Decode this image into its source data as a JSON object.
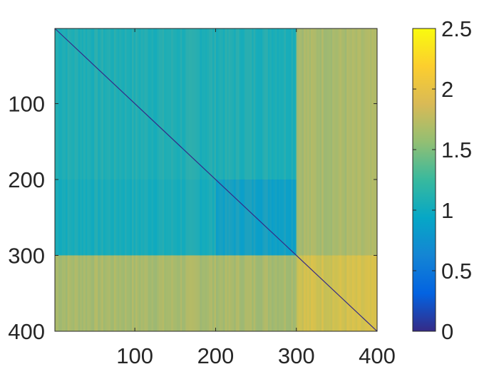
{
  "chart_data": {
    "type": "heatmap",
    "title": "",
    "xlabel": "",
    "ylabel": "",
    "xlim": [
      1,
      400
    ],
    "ylim": [
      1,
      400
    ],
    "y_direction": "reverse",
    "x_ticks": [
      100,
      200,
      300,
      400
    ],
    "x_tick_labels": [
      "100",
      "200",
      "300",
      "400"
    ],
    "y_ticks": [
      100,
      200,
      300,
      400
    ],
    "y_tick_labels": [
      "100",
      "200",
      "300",
      "400"
    ],
    "colormap": "parula",
    "color_range": [
      0,
      2.5
    ],
    "colorbar": {
      "ticks": [
        0,
        0.5,
        1,
        1.5,
        2,
        2.5
      ],
      "tick_labels": [
        "0",
        "0.5",
        "1",
        "1.5",
        "2",
        "2.5"
      ],
      "location": "right"
    },
    "diagonal_value": 0,
    "blocks": [
      {
        "rows": [
          1,
          200
        ],
        "cols": [
          1,
          300
        ],
        "approx_value": 1.05
      },
      {
        "rows": [
          200,
          300
        ],
        "cols": [
          1,
          200
        ],
        "approx_value": 1.0
      },
      {
        "rows": [
          200,
          300
        ],
        "cols": [
          200,
          300
        ],
        "approx_value": 0.85
      },
      {
        "rows": [
          1,
          300
        ],
        "cols": [
          300,
          400
        ],
        "approx_value": 1.75
      },
      {
        "rows": [
          300,
          400
        ],
        "cols": [
          1,
          300
        ],
        "approx_value": 1.75
      },
      {
        "rows": [
          300,
          400
        ],
        "cols": [
          300,
          400
        ],
        "approx_value": 2.05
      }
    ],
    "grid": false,
    "legend": "none"
  }
}
